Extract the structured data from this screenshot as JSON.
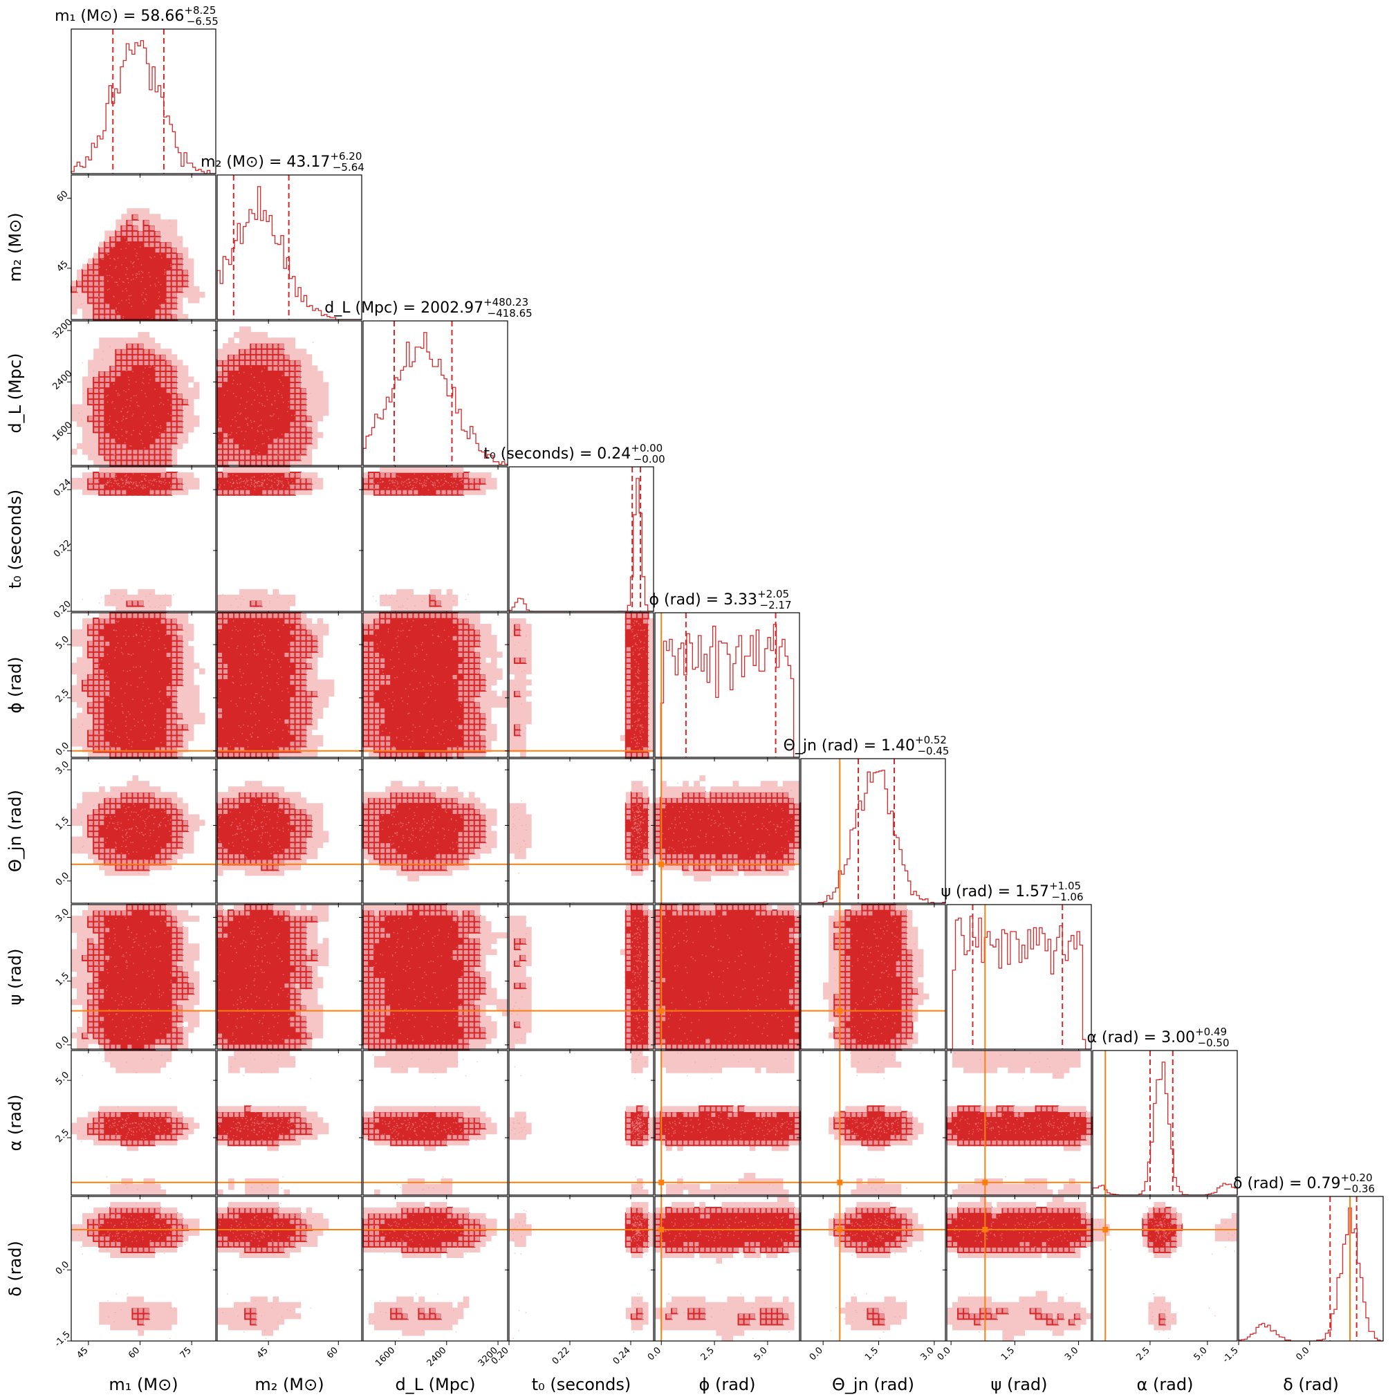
{
  "chart_data": {
    "type": "corner",
    "parameters": [
      {
        "key": "m1",
        "label": "m₁ (M⊙)",
        "title": "m₁ (M⊙) = 58.66",
        "median": 58.66,
        "plus": "+8.25",
        "minus": "−6.55",
        "range": [
          40,
          82
        ],
        "ticks": [
          45,
          60,
          75
        ],
        "truth": null,
        "modes": [
          {
            "mu": 58.66,
            "sig": 6.8,
            "w": 1.0
          }
        ]
      },
      {
        "key": "m2",
        "label": "m₂ (M⊙)",
        "title": "m₂ (M⊙) = 43.17",
        "median": 43.17,
        "plus": "+6.20",
        "minus": "−5.64",
        "range": [
          34,
          65
        ],
        "ticks": [
          45,
          60
        ],
        "truth": null,
        "modes": [
          {
            "mu": 42.5,
            "sig": 6.0,
            "w": 1.0
          }
        ]
      },
      {
        "key": "dL",
        "label": "d_L (Mpc)",
        "title": "d_L (Mpc) = 2002.97",
        "median": 2002.97,
        "plus": "+480.23",
        "minus": "−418.65",
        "range": [
          1100,
          3350
        ],
        "ticks": [
          1600,
          2400,
          3200
        ],
        "truth": null,
        "modes": [
          {
            "mu": 2002.97,
            "sig": 450,
            "w": 1.0
          }
        ]
      },
      {
        "key": "t0",
        "label": "t₀ (seconds)",
        "title": "t₀ (seconds) = 0.24",
        "median": 0.24,
        "plus": "+0.00",
        "minus": "−0.00",
        "range": [
          0.2,
          0.2475
        ],
        "ticks": [
          0.2,
          0.22,
          0.24
        ],
        "truth": null,
        "modes": [
          {
            "mu": 0.2423,
            "sig": 0.0011,
            "w": 0.9
          },
          {
            "mu": 0.2035,
            "sig": 0.0012,
            "w": 0.1
          }
        ]
      },
      {
        "key": "phi",
        "label": "ϕ (rad)",
        "title": "ϕ (rad) = 3.33",
        "median": 3.33,
        "plus": "+2.05",
        "minus": "−2.17",
        "range": [
          -0.3,
          6.5
        ],
        "ticks": [
          0.0,
          2.5,
          5.0
        ],
        "truth": 0.0,
        "modes": [
          {
            "uni": [
              0.05,
              6.2
            ],
            "w": 1.0
          }
        ]
      },
      {
        "key": "theta",
        "label": "Θ_jn (rad)",
        "title": "Θ_jn (rad) = 1.40",
        "median": 1.4,
        "plus": "+0.52",
        "minus": "−0.45",
        "range": [
          -0.6,
          3.3
        ],
        "ticks": [
          0.0,
          1.5,
          3.0
        ],
        "truth": 0.45,
        "modes": [
          {
            "mu": 1.4,
            "sig": 0.48,
            "w": 1.0
          }
        ]
      },
      {
        "key": "psi",
        "label": "ψ (rad)",
        "title": "ψ (rad) = 1.57",
        "median": 1.57,
        "plus": "+1.05",
        "minus": "−1.06",
        "range": [
          -0.1,
          3.3
        ],
        "ticks": [
          0.0,
          1.5,
          3.0
        ],
        "truth": 0.8,
        "modes": [
          {
            "uni": [
              0.05,
              3.1
            ],
            "w": 1.0
          }
        ]
      },
      {
        "key": "alpha",
        "label": "α (rad)",
        "title": "α (rad) = 3.00",
        "median": 3.0,
        "plus": "+0.49",
        "minus": "−0.50",
        "range": [
          0.0,
          6.3
        ],
        "ticks": [
          2.5,
          5.0
        ],
        "truth": 0.55,
        "modes": [
          {
            "mu": 3.0,
            "sig": 0.3,
            "w": 0.86
          },
          {
            "mu": 5.9,
            "sig": 0.35,
            "w": 0.09
          },
          {
            "mu": 0.3,
            "sig": 0.25,
            "w": 0.05
          }
        ]
      },
      {
        "key": "delta",
        "label": "δ (rad)",
        "title": "δ (rad) = 0.79",
        "median": 0.79,
        "plus": "+0.20",
        "minus": "−0.36",
        "range": [
          -1.5,
          1.55
        ],
        "ticks": [
          -1.5,
          0.0
        ],
        "truth": 0.85,
        "modes": [
          {
            "mu": 0.85,
            "sig": 0.2,
            "w": 0.88
          },
          {
            "mu": -0.95,
            "sig": 0.2,
            "w": 0.12
          }
        ]
      }
    ],
    "quantiles": {
      "m1": [
        52.11,
        66.91
      ],
      "m2": [
        37.53,
        49.37
      ],
      "dL": [
        1584.32,
        2483.2
      ],
      "t0": [
        0.2405,
        0.2432
      ],
      "phi": [
        1.16,
        5.38
      ],
      "theta": [
        0.95,
        1.92
      ],
      "psi": [
        0.51,
        2.62
      ],
      "alpha": [
        2.5,
        3.49
      ],
      "delta": [
        0.43,
        0.99
      ]
    },
    "tick_decimals": {
      "m1": 0,
      "m2": 0,
      "dL": 0,
      "t0": 2,
      "phi": 1,
      "theta": 1,
      "psi": 1,
      "alpha": 1,
      "delta": 1
    },
    "colors": {
      "posterior": "#d62728",
      "truth": "#ff7f0e"
    }
  }
}
